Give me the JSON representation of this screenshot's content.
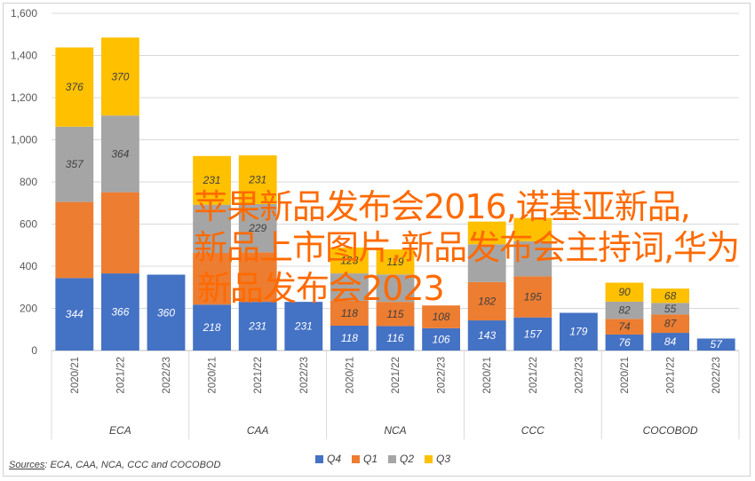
{
  "chart_data": {
    "type": "bar",
    "stacked": true,
    "ylim": [
      0,
      1600
    ],
    "yticks": [
      "0",
      "200",
      "400",
      "600",
      "800",
      "1,000",
      "1,200",
      "1,400",
      "1,600"
    ],
    "grid": true,
    "legend_position": "bottom",
    "groups": [
      {
        "name": "ECA",
        "categories": [
          "2020/21",
          "2021/22",
          "2022/23"
        ]
      },
      {
        "name": "CAA",
        "categories": [
          "2020/21",
          "2021/22",
          "2022/23"
        ]
      },
      {
        "name": "NCA",
        "categories": [
          "2020/21",
          "2021/22",
          "2022/23"
        ]
      },
      {
        "name": "CCC",
        "categories": [
          "2020/21",
          "2021/22",
          "2022/23"
        ]
      },
      {
        "name": "COCOBOD",
        "categories": [
          "2020/21",
          "2021/22",
          "2022/23"
        ]
      }
    ],
    "series": [
      {
        "name": "Q4",
        "color": "#4472C4",
        "values": [
          344,
          366,
          360,
          218,
          231,
          231,
          118,
          116,
          106,
          143,
          157,
          179,
          76,
          84,
          57
        ]
      },
      {
        "name": "Q1",
        "color": "#ED7D31",
        "values": [
          361,
          385,
          null,
          245,
          235,
          null,
          118,
          115,
          108,
          182,
          195,
          null,
          74,
          87,
          null
        ]
      },
      {
        "name": "Q2",
        "color": "#A5A5A5",
        "values": [
          357,
          364,
          null,
          229,
          229,
          null,
          130,
          130,
          null,
          179,
          167,
          null,
          82,
          55,
          null
        ]
      },
      {
        "name": "Q3",
        "color": "#FFC000",
        "values": [
          376,
          370,
          null,
          231,
          231,
          null,
          123,
          119,
          null,
          108,
          110,
          null,
          90,
          68,
          null
        ]
      }
    ],
    "labels": {
      "Q4": [
        "344",
        "366",
        "360",
        "218",
        "231",
        "231",
        "118",
        "116",
        "106",
        "143",
        "157",
        "179",
        "76",
        "84",
        "57"
      ],
      "Q1": [
        "",
        "",
        "",
        "",
        "",
        "",
        "118",
        "115",
        "108",
        "182",
        "195",
        "",
        "74",
        "87",
        ""
      ],
      "Q2": [
        "357",
        "364",
        "",
        "",
        "229",
        "",
        "",
        "",
        "",
        "",
        "",
        "",
        "82",
        "55",
        ""
      ],
      "Q3": [
        "376",
        "370",
        "",
        "231",
        "231",
        "",
        "123",
        "119",
        "",
        "",
        "",
        "",
        "90",
        "68",
        ""
      ]
    }
  },
  "source": {
    "label": "Sources",
    "text": ": ECA, CAA, NCA, CCC and COCOBOD"
  },
  "legend": [
    {
      "name": "Q4",
      "color": "#4472C4"
    },
    {
      "name": "Q1",
      "color": "#ED7D31"
    },
    {
      "name": "Q2",
      "color": "#A5A5A5"
    },
    {
      "name": "Q3",
      "color": "#FFC000"
    }
  ],
  "overlay": {
    "line1": "苹果新品发布会2016,诺基亚新品,",
    "line2": "新品上市图片,新品发布会主持词,华为",
    "line3": "新品发布会2023"
  }
}
